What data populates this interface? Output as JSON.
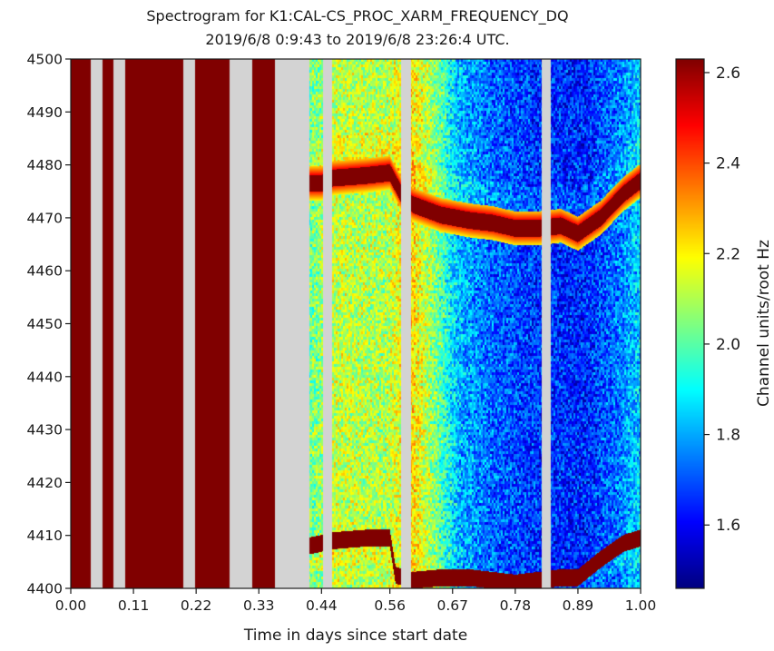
{
  "chart_data": {
    "type": "heatmap",
    "title_line1": "Spectrogram for K1:CAL-CS_PROC_XARM_FREQUENCY_DQ",
    "title_line2": "2019/6/8 0:9:43  to  2019/6/8 23:26:4 UTC.",
    "xlabel": "Time in days since start date",
    "ylabel": "",
    "xlim": [
      0,
      1
    ],
    "ylim": [
      4400,
      4500
    ],
    "x_ticks": [
      {
        "value": 0.0,
        "label": "0.00"
      },
      {
        "value": 0.11,
        "label": "0.11"
      },
      {
        "value": 0.22,
        "label": "0.22"
      },
      {
        "value": 0.33,
        "label": "0.33"
      },
      {
        "value": 0.44,
        "label": "0.44"
      },
      {
        "value": 0.56,
        "label": "0.56"
      },
      {
        "value": 0.67,
        "label": "0.67"
      },
      {
        "value": 0.78,
        "label": "0.78"
      },
      {
        "value": 0.89,
        "label": "0.89"
      },
      {
        "value": 1.0,
        "label": "1.00"
      }
    ],
    "y_ticks": [
      {
        "value": 4400,
        "label": "4400"
      },
      {
        "value": 4410,
        "label": "4410"
      },
      {
        "value": 4420,
        "label": "4420"
      },
      {
        "value": 4430,
        "label": "4430"
      },
      {
        "value": 4440,
        "label": "4440"
      },
      {
        "value": 4450,
        "label": "4450"
      },
      {
        "value": 4460,
        "label": "4460"
      },
      {
        "value": 4470,
        "label": "4470"
      },
      {
        "value": 4480,
        "label": "4480"
      },
      {
        "value": 4490,
        "label": "4490"
      },
      {
        "value": 4500,
        "label": "4500"
      }
    ],
    "colorbar": {
      "label": "Channel units/root Hz",
      "range": [
        1.46,
        2.63
      ],
      "ticks": [
        {
          "value": 1.6,
          "label": "1.6"
        },
        {
          "value": 1.8,
          "label": "1.8"
        },
        {
          "value": 2.0,
          "label": "2.0"
        },
        {
          "value": 2.2,
          "label": "2.2"
        },
        {
          "value": 2.4,
          "label": "2.4"
        },
        {
          "value": 2.6,
          "label": "2.6"
        }
      ],
      "colormap": "jet"
    },
    "gap_color": "#d3d3d3",
    "saturated_color": "#800000",
    "time_segments": [
      {
        "t0": 0.0,
        "t1": 0.035,
        "state": "saturated"
      },
      {
        "t0": 0.035,
        "t1": 0.055,
        "state": "gap"
      },
      {
        "t0": 0.055,
        "t1": 0.075,
        "state": "saturated"
      },
      {
        "t0": 0.075,
        "t1": 0.095,
        "state": "gap"
      },
      {
        "t0": 0.095,
        "t1": 0.198,
        "state": "saturated"
      },
      {
        "t0": 0.198,
        "t1": 0.218,
        "state": "gap"
      },
      {
        "t0": 0.218,
        "t1": 0.278,
        "state": "saturated"
      },
      {
        "t0": 0.278,
        "t1": 0.318,
        "state": "gap"
      },
      {
        "t0": 0.318,
        "t1": 0.358,
        "state": "saturated"
      },
      {
        "t0": 0.358,
        "t1": 0.418,
        "state": "gap"
      },
      {
        "t0": 0.418,
        "t1": 0.442,
        "state": "data"
      },
      {
        "t0": 0.442,
        "t1": 0.458,
        "state": "gap"
      },
      {
        "t0": 0.458,
        "t1": 0.58,
        "state": "data"
      },
      {
        "t0": 0.58,
        "t1": 0.597,
        "state": "gap"
      },
      {
        "t0": 0.597,
        "t1": 0.827,
        "state": "data"
      },
      {
        "t0": 0.827,
        "t1": 0.842,
        "state": "gap"
      },
      {
        "t0": 0.842,
        "t1": 1.0,
        "state": "data"
      }
    ],
    "background_level": [
      {
        "t": 0.418,
        "level": 2.02
      },
      {
        "t": 0.46,
        "level": 2.12
      },
      {
        "t": 0.55,
        "level": 2.1
      },
      {
        "t": 0.6,
        "level": 2.22
      },
      {
        "t": 0.64,
        "level": 2.05
      },
      {
        "t": 0.68,
        "level": 1.82
      },
      {
        "t": 0.74,
        "level": 1.72
      },
      {
        "t": 0.82,
        "level": 1.66
      },
      {
        "t": 0.9,
        "level": 1.64
      },
      {
        "t": 0.96,
        "level": 1.74
      },
      {
        "t": 1.0,
        "level": 1.85
      }
    ],
    "upper_line": [
      {
        "t": 0.418,
        "freq": 4476.5
      },
      {
        "t": 0.44,
        "freq": 4476.5
      },
      {
        "t": 0.46,
        "freq": 4477.5
      },
      {
        "t": 0.52,
        "freq": 4478.0
      },
      {
        "t": 0.56,
        "freq": 4478.5
      },
      {
        "t": 0.58,
        "freq": 4474.5
      },
      {
        "t": 0.6,
        "freq": 4472.5
      },
      {
        "t": 0.65,
        "freq": 4470.5
      },
      {
        "t": 0.7,
        "freq": 4469.5
      },
      {
        "t": 0.74,
        "freq": 4469.0
      },
      {
        "t": 0.78,
        "freq": 4468.0
      },
      {
        "t": 0.82,
        "freq": 4468.0
      },
      {
        "t": 0.86,
        "freq": 4468.5
      },
      {
        "t": 0.89,
        "freq": 4467.0
      },
      {
        "t": 0.93,
        "freq": 4470.0
      },
      {
        "t": 0.97,
        "freq": 4474.5
      },
      {
        "t": 1.0,
        "freq": 4477.0
      }
    ],
    "lower_line": [
      {
        "t": 0.418,
        "freq": 4408.0
      },
      {
        "t": 0.44,
        "freq": 4408.5
      },
      {
        "t": 0.46,
        "freq": 4409.0
      },
      {
        "t": 0.52,
        "freq": 4409.5
      },
      {
        "t": 0.56,
        "freq": 4409.5
      },
      {
        "t": 0.57,
        "freq": 4402.5
      },
      {
        "t": 0.6,
        "freq": 4401.5
      },
      {
        "t": 0.65,
        "freq": 4402.0
      },
      {
        "t": 0.7,
        "freq": 4402.0
      },
      {
        "t": 0.74,
        "freq": 4401.5
      },
      {
        "t": 0.78,
        "freq": 4401.0
      },
      {
        "t": 0.82,
        "freq": 4401.5
      },
      {
        "t": 0.86,
        "freq": 4402.0
      },
      {
        "t": 0.89,
        "freq": 4402.0
      },
      {
        "t": 0.93,
        "freq": 4405.5
      },
      {
        "t": 0.97,
        "freq": 4408.5
      },
      {
        "t": 1.0,
        "freq": 4409.5
      }
    ]
  }
}
